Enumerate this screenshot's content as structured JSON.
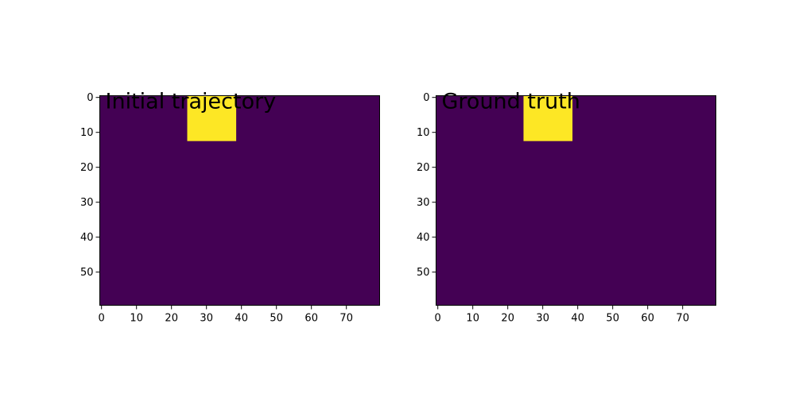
{
  "chart_data": [
    {
      "type": "heatmap",
      "title": "Initial trajectory",
      "xlabel": "",
      "ylabel": "",
      "grid": false,
      "xlim": [
        -0.5,
        79.5
      ],
      "ylim": [
        59.5,
        -0.5
      ],
      "x_ticks": [
        0,
        10,
        20,
        30,
        40,
        50,
        60,
        70
      ],
      "y_ticks": [
        0,
        10,
        20,
        30,
        40,
        50
      ],
      "background_value": 0,
      "background_color": "#440154",
      "regions": [
        {
          "x_range": [
            25,
            38
          ],
          "y_range": [
            0,
            12
          ],
          "value": 1,
          "color": "#fde725"
        }
      ]
    },
    {
      "type": "heatmap",
      "title": "Ground truth",
      "xlabel": "",
      "ylabel": "",
      "grid": false,
      "xlim": [
        -0.5,
        79.5
      ],
      "ylim": [
        59.5,
        -0.5
      ],
      "x_ticks": [
        0,
        10,
        20,
        30,
        40,
        50,
        60,
        70
      ],
      "y_ticks": [
        0,
        10,
        20,
        30,
        40,
        50
      ],
      "background_value": 0,
      "background_color": "#440154",
      "regions": [
        {
          "x_range": [
            25,
            38
          ],
          "y_range": [
            0,
            12
          ],
          "value": 1,
          "color": "#fde725"
        }
      ]
    }
  ]
}
